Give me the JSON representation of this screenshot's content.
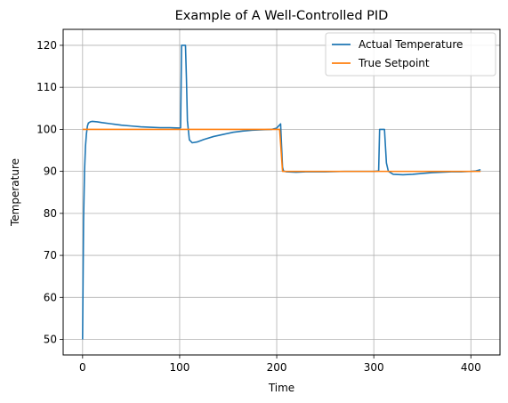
{
  "chart_data": {
    "type": "line",
    "title": "Example of A Well-Controlled PID",
    "xlabel": "Time",
    "ylabel": "Temperature",
    "xlim": [
      -20,
      430
    ],
    "ylim": [
      46.3,
      123.8
    ],
    "xticks": [
      0,
      100,
      200,
      300,
      400
    ],
    "yticks": [
      50,
      60,
      70,
      80,
      90,
      100,
      110,
      120
    ],
    "grid": true,
    "legend_position": "top-right",
    "series": [
      {
        "name": "Actual Temperature",
        "color": "#1f77b4",
        "points": [
          [
            0,
            50
          ],
          [
            1,
            78
          ],
          [
            2,
            90
          ],
          [
            3,
            96
          ],
          [
            4,
            99
          ],
          [
            5,
            100.8
          ],
          [
            6,
            101.5
          ],
          [
            8,
            101.8
          ],
          [
            10,
            101.9
          ],
          [
            15,
            101.8
          ],
          [
            20,
            101.6
          ],
          [
            30,
            101.3
          ],
          [
            40,
            101.0
          ],
          [
            50,
            100.8
          ],
          [
            60,
            100.6
          ],
          [
            70,
            100.5
          ],
          [
            80,
            100.4
          ],
          [
            90,
            100.4
          ],
          [
            100,
            100.3
          ],
          [
            101,
            100.4
          ],
          [
            102,
            120
          ],
          [
            106,
            120
          ],
          [
            107,
            112
          ],
          [
            108,
            102
          ],
          [
            110,
            97.5
          ],
          [
            113,
            96.8
          ],
          [
            118,
            97.0
          ],
          [
            125,
            97.6
          ],
          [
            135,
            98.3
          ],
          [
            145,
            98.8
          ],
          [
            155,
            99.3
          ],
          [
            165,
            99.6
          ],
          [
            175,
            99.8
          ],
          [
            185,
            99.9
          ],
          [
            195,
            100.0
          ],
          [
            200,
            100.3
          ],
          [
            204,
            101.3
          ],
          [
            205,
            96
          ],
          [
            206,
            91
          ],
          [
            207,
            90.1
          ],
          [
            210,
            89.9
          ],
          [
            220,
            89.8
          ],
          [
            230,
            89.9
          ],
          [
            250,
            89.9
          ],
          [
            270,
            90.0
          ],
          [
            290,
            90.0
          ],
          [
            300,
            90.0
          ],
          [
            305,
            90.1
          ],
          [
            306,
            100
          ],
          [
            311,
            100
          ],
          [
            312,
            96
          ],
          [
            313,
            92
          ],
          [
            315,
            90
          ],
          [
            320,
            89.3
          ],
          [
            330,
            89.2
          ],
          [
            340,
            89.3
          ],
          [
            350,
            89.5
          ],
          [
            360,
            89.7
          ],
          [
            370,
            89.8
          ],
          [
            380,
            89.9
          ],
          [
            390,
            89.9
          ],
          [
            400,
            90.0
          ],
          [
            405,
            90.1
          ],
          [
            410,
            90.4
          ]
        ]
      },
      {
        "name": "True Setpoint",
        "color": "#ff7f0e",
        "points": [
          [
            0,
            100
          ],
          [
            203,
            100
          ],
          [
            206,
            90
          ],
          [
            410,
            90
          ]
        ]
      }
    ]
  }
}
